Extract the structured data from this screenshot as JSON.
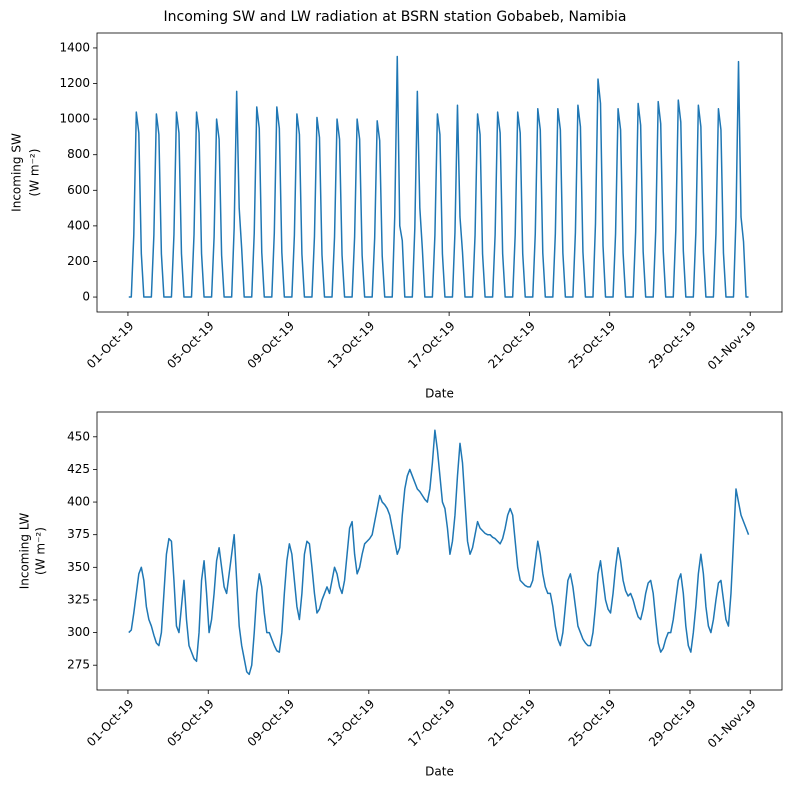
{
  "title": "Incoming SW and LW radiation at BSRN station Gobabeb, Namibia",
  "chart_data": [
    {
      "type": "line",
      "xlabel": "Date",
      "ylabel": [
        "Incoming SW",
        "(W m⁻²)"
      ],
      "xlim": [
        -37,
        782
      ],
      "ylim": [
        -84,
        1484
      ],
      "xticks": [
        {
          "value": 0,
          "label": "01-Oct-19"
        },
        {
          "value": 96,
          "label": "05-Oct-19"
        },
        {
          "value": 192,
          "label": "09-Oct-19"
        },
        {
          "value": 288,
          "label": "13-Oct-19"
        },
        {
          "value": 384,
          "label": "17-Oct-19"
        },
        {
          "value": 480,
          "label": "21-Oct-19"
        },
        {
          "value": 576,
          "label": "25-Oct-19"
        },
        {
          "value": 672,
          "label": "29-Oct-19"
        },
        {
          "value": 744,
          "label": "01-Nov-19"
        }
      ],
      "yticks": [
        0,
        200,
        400,
        600,
        800,
        1000,
        1200,
        1400
      ],
      "x": [
        1,
        4,
        7,
        10,
        13,
        16,
        19,
        22,
        25,
        28,
        31,
        34,
        37,
        40,
        43,
        46,
        49,
        52,
        55,
        58,
        61,
        64,
        67,
        70,
        73,
        76,
        79,
        82,
        85,
        88,
        91,
        94,
        97,
        100,
        103,
        106,
        109,
        112,
        115,
        118,
        121,
        124,
        127,
        130,
        133,
        136,
        139,
        142,
        145,
        148,
        151,
        154,
        157,
        160,
        163,
        166,
        169,
        172,
        175,
        178,
        181,
        184,
        187,
        190,
        193,
        196,
        199,
        202,
        205,
        208,
        211,
        214,
        217,
        220,
        223,
        226,
        229,
        232,
        235,
        238,
        241,
        244,
        247,
        250,
        253,
        256,
        259,
        262,
        265,
        268,
        271,
        274,
        277,
        280,
        283,
        286,
        289,
        292,
        295,
        298,
        301,
        304,
        307,
        310,
        313,
        316,
        319,
        322,
        325,
        328,
        331,
        334,
        337,
        340,
        343,
        346,
        349,
        352,
        355,
        358,
        361,
        364,
        367,
        370,
        373,
        376,
        379,
        382,
        385,
        388,
        391,
        394,
        397,
        400,
        403,
        406,
        409,
        412,
        415,
        418,
        421,
        424,
        427,
        430,
        433,
        436,
        439,
        442,
        445,
        448,
        451,
        454,
        457,
        460,
        463,
        466,
        469,
        472,
        475,
        478,
        481,
        484,
        487,
        490,
        493,
        496,
        499,
        502,
        505,
        508,
        511,
        514,
        517,
        520,
        523,
        526,
        529,
        532,
        535,
        538,
        541,
        544,
        547,
        550,
        553,
        556,
        559,
        562,
        565,
        568,
        571,
        574,
        577,
        580,
        583,
        586,
        589,
        592,
        595,
        598,
        601,
        604,
        607,
        610,
        613,
        616,
        619,
        622,
        625,
        628,
        631,
        634,
        637,
        640,
        643,
        646,
        649,
        652,
        655,
        658,
        661,
        664,
        667,
        670,
        673,
        676,
        679,
        682,
        685,
        688,
        691,
        694,
        697,
        700,
        703,
        706,
        709,
        712,
        715,
        718,
        721,
        724,
        727,
        730,
        733,
        736,
        739,
        742
      ],
      "series": [
        {
          "color": "#1f77b4",
          "values": [
            0,
            0,
            350,
            1039,
            922,
            244,
            0,
            0,
            0,
            0,
            347,
            1029,
            914,
            242,
            0,
            0,
            0,
            0,
            350,
            1039,
            922,
            244,
            0,
            0,
            0,
            0,
            350,
            1039,
            922,
            244,
            0,
            0,
            0,
            0,
            337,
            1000,
            887,
            235,
            0,
            0,
            0,
            0,
            389,
            1156,
            500,
            271,
            0,
            0,
            0,
            0,
            360,
            1068,
            948,
            251,
            0,
            0,
            0,
            0,
            360,
            1068,
            948,
            251,
            0,
            0,
            0,
            0,
            347,
            1029,
            914,
            242,
            0,
            0,
            0,
            0,
            340,
            1009,
            896,
            237,
            0,
            0,
            0,
            0,
            337,
            1000,
            887,
            235,
            0,
            0,
            0,
            0,
            337,
            1000,
            887,
            235,
            0,
            0,
            0,
            0,
            333,
            990,
            879,
            232,
            0,
            0,
            0,
            0,
            455,
            1352,
            400,
            317,
            0,
            0,
            0,
            0,
            389,
            1156,
            500,
            271,
            0,
            0,
            0,
            0,
            347,
            1029,
            914,
            242,
            0,
            0,
            0,
            0,
            363,
            1078,
            450,
            253,
            0,
            0,
            0,
            0,
            347,
            1029,
            914,
            242,
            0,
            0,
            0,
            0,
            350,
            1039,
            922,
            244,
            0,
            0,
            0,
            0,
            350,
            1039,
            922,
            244,
            0,
            0,
            0,
            0,
            356,
            1058,
            940,
            248,
            0,
            0,
            0,
            0,
            356,
            1058,
            940,
            248,
            0,
            0,
            0,
            0,
            363,
            1078,
            957,
            253,
            0,
            0,
            0,
            0,
            413,
            1225,
            1088,
            288,
            0,
            0,
            0,
            0,
            356,
            1058,
            940,
            248,
            0,
            0,
            0,
            0,
            366,
            1088,
            966,
            255,
            0,
            0,
            0,
            0,
            370,
            1098,
            974,
            258,
            0,
            0,
            0,
            0,
            373,
            1107,
            983,
            260,
            0,
            0,
            0,
            0,
            363,
            1078,
            957,
            253,
            0,
            0,
            0,
            0,
            356,
            1058,
            940,
            248,
            0,
            0,
            0,
            0,
            446,
            1323,
            450,
            311,
            0,
            0
          ]
        }
      ]
    },
    {
      "type": "line",
      "xlabel": "Date",
      "ylabel": [
        "Incoming LW",
        "(W m⁻²)"
      ],
      "xlim": [
        -37,
        782
      ],
      "ylim": [
        256,
        469
      ],
      "xticks": [
        {
          "value": 0,
          "label": "01-Oct-19"
        },
        {
          "value": 96,
          "label": "05-Oct-19"
        },
        {
          "value": 192,
          "label": "09-Oct-19"
        },
        {
          "value": 288,
          "label": "13-Oct-19"
        },
        {
          "value": 384,
          "label": "17-Oct-19"
        },
        {
          "value": 480,
          "label": "21-Oct-19"
        },
        {
          "value": 576,
          "label": "25-Oct-19"
        },
        {
          "value": 672,
          "label": "29-Oct-19"
        },
        {
          "value": 744,
          "label": "01-Nov-19"
        }
      ],
      "yticks": [
        275,
        300,
        325,
        350,
        375,
        400,
        425,
        450
      ],
      "x": [
        1,
        4,
        7,
        10,
        13,
        16,
        19,
        22,
        25,
        28,
        31,
        34,
        37,
        40,
        43,
        46,
        49,
        52,
        55,
        58,
        61,
        64,
        67,
        70,
        73,
        76,
        79,
        82,
        85,
        88,
        91,
        94,
        97,
        100,
        103,
        106,
        109,
        112,
        115,
        118,
        121,
        124,
        127,
        130,
        133,
        136,
        139,
        142,
        145,
        148,
        151,
        154,
        157,
        160,
        163,
        166,
        169,
        172,
        175,
        178,
        181,
        184,
        187,
        190,
        193,
        196,
        199,
        202,
        205,
        208,
        211,
        214,
        217,
        220,
        223,
        226,
        229,
        232,
        235,
        238,
        241,
        244,
        247,
        250,
        253,
        256,
        259,
        262,
        265,
        268,
        271,
        274,
        277,
        280,
        283,
        286,
        289,
        292,
        295,
        298,
        301,
        304,
        307,
        310,
        313,
        316,
        319,
        322,
        325,
        328,
        331,
        334,
        337,
        340,
        343,
        346,
        349,
        352,
        355,
        358,
        361,
        364,
        367,
        370,
        373,
        376,
        379,
        382,
        385,
        388,
        391,
        394,
        397,
        400,
        403,
        406,
        409,
        412,
        415,
        418,
        421,
        424,
        427,
        430,
        433,
        436,
        439,
        442,
        445,
        448,
        451,
        454,
        457,
        460,
        463,
        466,
        469,
        472,
        475,
        478,
        481,
        484,
        487,
        490,
        493,
        496,
        499,
        502,
        505,
        508,
        511,
        514,
        517,
        520,
        523,
        526,
        529,
        532,
        535,
        538,
        541,
        544,
        547,
        550,
        553,
        556,
        559,
        562,
        565,
        568,
        571,
        574,
        577,
        580,
        583,
        586,
        589,
        592,
        595,
        598,
        601,
        604,
        607,
        610,
        613,
        616,
        619,
        622,
        625,
        628,
        631,
        634,
        637,
        640,
        643,
        646,
        649,
        652,
        655,
        658,
        661,
        664,
        667,
        670,
        673,
        676,
        679,
        682,
        685,
        688,
        691,
        694,
        697,
        700,
        703,
        706,
        709,
        712,
        715,
        718,
        721,
        724,
        727,
        730,
        733,
        736,
        739,
        742
      ],
      "series": [
        {
          "color": "#1f77b4",
          "values": [
            300,
            302,
            315,
            330,
            345,
            350,
            340,
            320,
            310,
            305,
            298,
            292,
            290,
            300,
            330,
            360,
            372,
            370,
            340,
            305,
            300,
            320,
            340,
            310,
            290,
            285,
            280,
            278,
            300,
            340,
            355,
            330,
            300,
            310,
            330,
            355,
            365,
            350,
            335,
            330,
            345,
            360,
            375,
            340,
            305,
            290,
            280,
            270,
            268,
            275,
            300,
            330,
            345,
            335,
            315,
            300,
            300,
            295,
            290,
            286,
            285,
            300,
            330,
            355,
            368,
            360,
            340,
            320,
            310,
            330,
            360,
            370,
            368,
            350,
            330,
            315,
            318,
            325,
            330,
            335,
            330,
            340,
            350,
            345,
            335,
            330,
            340,
            360,
            380,
            385,
            360,
            345,
            350,
            360,
            368,
            370,
            372,
            375,
            385,
            395,
            405,
            400,
            398,
            395,
            390,
            380,
            370,
            360,
            365,
            390,
            410,
            420,
            425,
            420,
            415,
            410,
            408,
            405,
            402,
            400,
            410,
            430,
            455,
            440,
            420,
            400,
            395,
            380,
            360,
            370,
            390,
            420,
            445,
            430,
            400,
            370,
            360,
            365,
            375,
            385,
            380,
            378,
            376,
            375,
            375,
            373,
            372,
            370,
            368,
            372,
            380,
            390,
            395,
            390,
            370,
            350,
            340,
            338,
            336,
            335,
            335,
            340,
            355,
            370,
            360,
            345,
            335,
            330,
            330,
            320,
            305,
            295,
            290,
            300,
            320,
            340,
            345,
            335,
            320,
            305,
            300,
            295,
            292,
            290,
            290,
            300,
            320,
            345,
            355,
            340,
            325,
            318,
            315,
            330,
            350,
            365,
            355,
            340,
            332,
            328,
            330,
            325,
            318,
            312,
            310,
            318,
            330,
            338,
            340,
            330,
            310,
            292,
            285,
            288,
            295,
            300,
            300,
            310,
            325,
            340,
            345,
            330,
            305,
            290,
            285,
            300,
            320,
            345,
            360,
            345,
            320,
            305,
            300,
            310,
            325,
            338,
            340,
            325,
            310,
            305,
            330,
            370,
            410,
            400,
            390,
            385,
            380,
            375
          ]
        }
      ]
    }
  ]
}
